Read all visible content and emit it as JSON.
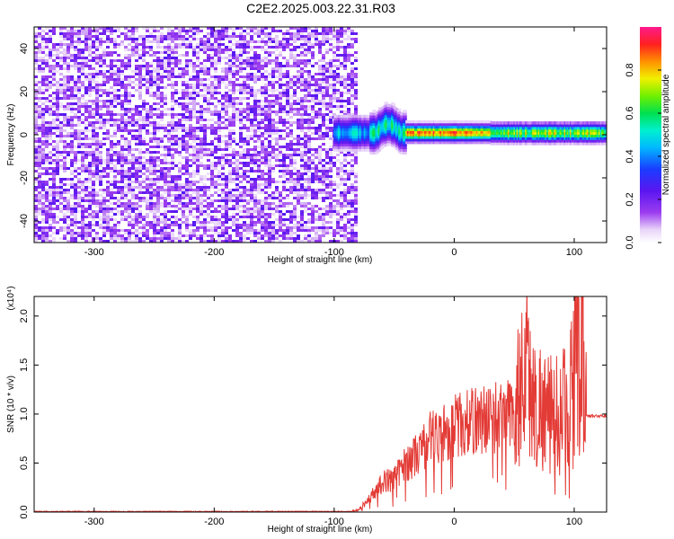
{
  "title": "C2E2.2025.003.22.31.R03",
  "chart_data": [
    {
      "type": "heatmap",
      "xlabel": "Height of straight line (km)",
      "ylabel": "Frequency (Hz)",
      "xlim": [
        -350,
        127
      ],
      "ylim": [
        -50,
        50
      ],
      "xticks": [
        -300,
        -200,
        -100,
        0,
        100
      ],
      "yticks": [
        -40,
        -20,
        0,
        20,
        40
      ],
      "colorbar": {
        "label": "Normalized spectral amplitude",
        "range": [
          0,
          1
        ],
        "ticks": [
          "0.0",
          "0.2",
          "0.4",
          "0.6",
          "0.8"
        ],
        "colormap": "white-purple-blue-cyan-green-yellow-red-magenta"
      },
      "structure": {
        "noise_region_x": [
          -350,
          -85
        ],
        "signal_track_x": [
          -100,
          127
        ],
        "signal_track_frequency_hz": 1,
        "peak_amplitude_region_x": [
          -30,
          20
        ]
      },
      "grid": false
    },
    {
      "type": "line",
      "xlabel": "Height of straight line (km)",
      "ylabel": "SNR (10 * v/v)",
      "y_scale_label": "(x10⁴)",
      "xlim": [
        -350,
        127
      ],
      "ylim": [
        0,
        2.2
      ],
      "xticks": [
        -300,
        -200,
        -100,
        0,
        100
      ],
      "yticks": [
        "0.0",
        "0.5",
        "1.0",
        "1.5",
        "2.0"
      ],
      "color": "#e33b36",
      "grid": false,
      "x": [
        -350,
        -300,
        -250,
        -200,
        -150,
        -100,
        -80,
        -70,
        -60,
        -50,
        -40,
        -30,
        -20,
        -10,
        0,
        10,
        20,
        30,
        40,
        50,
        55,
        60,
        65,
        70,
        80,
        90,
        100,
        105,
        110,
        115,
        127
      ],
      "y": [
        0.0,
        0.0,
        0.0,
        0.0,
        0.0,
        0.0,
        0.02,
        0.15,
        0.3,
        0.35,
        0.5,
        0.6,
        0.75,
        0.8,
        0.88,
        0.9,
        0.95,
        0.95,
        1.0,
        1.0,
        1.3,
        1.6,
        1.1,
        1.1,
        1.0,
        1.0,
        1.4,
        2.2,
        0.98,
        0.98,
        0.98
      ],
      "notes": "high-frequency fluctuating trace"
    }
  ]
}
